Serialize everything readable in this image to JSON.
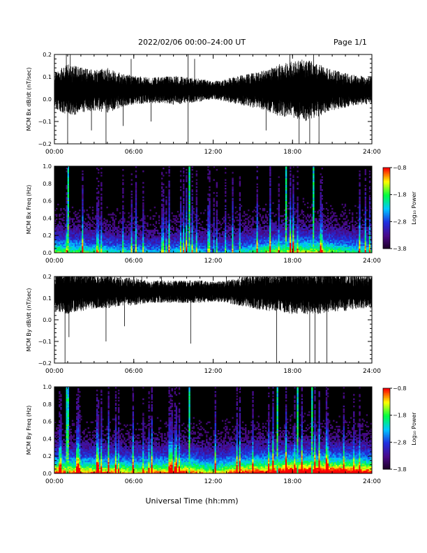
{
  "header": {
    "title": "2022/02/06  00:00–24:00 UT",
    "page_label": "Page 1/1"
  },
  "footer": {
    "xlabel": "Universal Time (hh:mm)"
  },
  "colors": {
    "trace": "#000000",
    "spectrogram_background": "#000000",
    "colormap": [
      "#1a0022",
      "#4a0a8a",
      "#1e2fe0",
      "#00c8ff",
      "#00ff40",
      "#ffff00",
      "#ff0000"
    ]
  },
  "chart_data": [
    {
      "type": "line",
      "ylabel": "MCM Bx dB/dt (nT/sec)",
      "xlim": [
        0,
        24
      ],
      "ylim": [
        -0.2,
        0.2
      ],
      "x_ticks": [
        "00:00",
        "06:00",
        "12:00",
        "18:00",
        "24:00"
      ],
      "y_ticks": [
        "0.2",
        "0.1",
        "0.0",
        "−0.1",
        "−0.2"
      ],
      "y_tick_values": [
        0.2,
        0.1,
        0.0,
        -0.1,
        -0.2
      ],
      "baseline": 0.04,
      "envelope": [
        [
          0,
          0.06
        ],
        [
          1,
          0.09
        ],
        [
          2,
          0.08
        ],
        [
          3,
          0.07
        ],
        [
          4,
          0.08
        ],
        [
          5,
          0.06
        ],
        [
          6,
          0.05
        ],
        [
          7,
          0.045
        ],
        [
          8,
          0.045
        ],
        [
          9,
          0.05
        ],
        [
          10,
          0.045
        ],
        [
          11,
          0.04
        ],
        [
          12,
          0.03
        ],
        [
          13,
          0.04
        ],
        [
          14,
          0.05
        ],
        [
          15,
          0.06
        ],
        [
          16,
          0.07
        ],
        [
          17,
          0.09
        ],
        [
          18,
          0.1
        ],
        [
          19,
          0.11
        ],
        [
          20,
          0.09
        ],
        [
          21,
          0.07
        ],
        [
          22,
          0.06
        ],
        [
          23,
          0.05
        ],
        [
          24,
          0.05
        ]
      ],
      "spikes": [
        [
          0.9,
          0.2
        ],
        [
          1.0,
          -0.2
        ],
        [
          1.2,
          0.2
        ],
        [
          2.8,
          -0.14
        ],
        [
          3.9,
          -0.2
        ],
        [
          5.2,
          -0.12
        ],
        [
          5.8,
          0.18
        ],
        [
          7.3,
          -0.1
        ],
        [
          10.1,
          -0.2
        ],
        [
          10.1,
          0.2
        ],
        [
          10.6,
          0.18
        ],
        [
          16.0,
          -0.14
        ],
        [
          17.8,
          0.2
        ],
        [
          18.5,
          -0.2
        ],
        [
          19.3,
          -0.2
        ],
        [
          19.6,
          0.2
        ],
        [
          20.0,
          -0.2
        ]
      ]
    },
    {
      "type": "heatmap",
      "ylabel": "MCM Bx Freq (Hz)",
      "xlim": [
        0,
        24
      ],
      "ylim": [
        0,
        1.0
      ],
      "x_ticks": [
        "00:00",
        "06:00",
        "12:00",
        "18:00",
        "24:00"
      ],
      "y_ticks": [
        "1.0",
        "0.8",
        "0.6",
        "0.4",
        "0.2",
        "0.0"
      ],
      "y_tick_values": [
        1.0,
        0.8,
        0.6,
        0.4,
        0.2,
        0.0
      ],
      "colorbar": {
        "label": "Log₁₀ Power",
        "range": [
          -3.8,
          -0.8
        ],
        "ticks": [
          "−0.8",
          "−1.8",
          "−2.8",
          "−3.8"
        ]
      },
      "activity": [
        [
          0,
          0.55
        ],
        [
          2,
          0.5
        ],
        [
          4,
          0.45
        ],
        [
          6,
          0.4
        ],
        [
          8,
          0.35
        ],
        [
          10,
          0.45
        ],
        [
          12,
          0.3
        ],
        [
          14,
          0.4
        ],
        [
          16,
          0.55
        ],
        [
          18,
          0.6
        ],
        [
          20,
          0.6
        ],
        [
          22,
          0.5
        ],
        [
          24,
          0.45
        ]
      ],
      "bright_columns": [
        1.0,
        1.05,
        10.2,
        17.5,
        19.6
      ]
    },
    {
      "type": "line",
      "ylabel": "MCM By dB/dt (nT/sec)",
      "xlim": [
        0,
        24
      ],
      "ylim": [
        -0.2,
        0.2
      ],
      "x_ticks": [
        "00:00",
        "06:00",
        "12:00",
        "18:00",
        "24:00"
      ],
      "y_ticks": [
        "0.2",
        "0.1",
        "0.0",
        "−0.1",
        "−0.2"
      ],
      "y_tick_values": [
        0.2,
        0.1,
        0.0,
        -0.1,
        -0.2
      ],
      "baseline": 0.13,
      "envelope": [
        [
          0,
          0.07
        ],
        [
          1,
          0.08
        ],
        [
          2,
          0.07
        ],
        [
          3,
          0.06
        ],
        [
          4,
          0.06
        ],
        [
          5,
          0.05
        ],
        [
          6,
          0.05
        ],
        [
          7,
          0.04
        ],
        [
          8,
          0.04
        ],
        [
          9,
          0.04
        ],
        [
          10,
          0.04
        ],
        [
          11,
          0.04
        ],
        [
          12,
          0.035
        ],
        [
          13,
          0.04
        ],
        [
          14,
          0.05
        ],
        [
          15,
          0.06
        ],
        [
          16,
          0.07
        ],
        [
          17,
          0.07
        ],
        [
          18,
          0.08
        ],
        [
          19,
          0.08
        ],
        [
          20,
          0.08
        ],
        [
          21,
          0.07
        ],
        [
          22,
          0.07
        ],
        [
          23,
          0.06
        ],
        [
          24,
          0.06
        ]
      ],
      "spikes": [
        [
          0.3,
          0.2
        ],
        [
          0.8,
          -0.2
        ],
        [
          1.1,
          -0.08
        ],
        [
          1.3,
          0.2
        ],
        [
          3.9,
          -0.1
        ],
        [
          5.3,
          -0.03
        ],
        [
          6.6,
          0.2
        ],
        [
          8.1,
          0.2
        ],
        [
          10.3,
          -0.11
        ],
        [
          13.0,
          0.2
        ],
        [
          16.8,
          -0.2
        ],
        [
          19.3,
          -0.2
        ],
        [
          19.7,
          -0.2
        ],
        [
          20.6,
          -0.2
        ],
        [
          22.0,
          0.2
        ]
      ]
    },
    {
      "type": "heatmap",
      "ylabel": "MCM By Freq (Hz)",
      "xlim": [
        0,
        24
      ],
      "ylim": [
        0,
        1.0
      ],
      "x_ticks": [
        "00:00",
        "06:00",
        "12:00",
        "18:00",
        "24:00"
      ],
      "y_ticks": [
        "1.0",
        "0.8",
        "0.6",
        "0.4",
        "0.2",
        "0.0"
      ],
      "y_tick_values": [
        1.0,
        0.8,
        0.6,
        0.4,
        0.2,
        0.0
      ],
      "colorbar": {
        "label": "Log₁₀ Power",
        "range": [
          -3.8,
          -0.8
        ],
        "ticks": [
          "−0.8",
          "−1.8",
          "−2.8",
          "−3.8"
        ]
      },
      "activity": [
        [
          0,
          0.75
        ],
        [
          2,
          0.7
        ],
        [
          4,
          0.7
        ],
        [
          6,
          0.65
        ],
        [
          8,
          0.7
        ],
        [
          10,
          0.75
        ],
        [
          12,
          0.6
        ],
        [
          14,
          0.75
        ],
        [
          16,
          0.8
        ],
        [
          18,
          0.9
        ],
        [
          20,
          0.9
        ],
        [
          22,
          0.85
        ],
        [
          24,
          0.8
        ]
      ],
      "bright_columns": [
        0.9,
        1.0,
        10.2,
        16.9,
        18.4,
        19.5
      ]
    }
  ]
}
